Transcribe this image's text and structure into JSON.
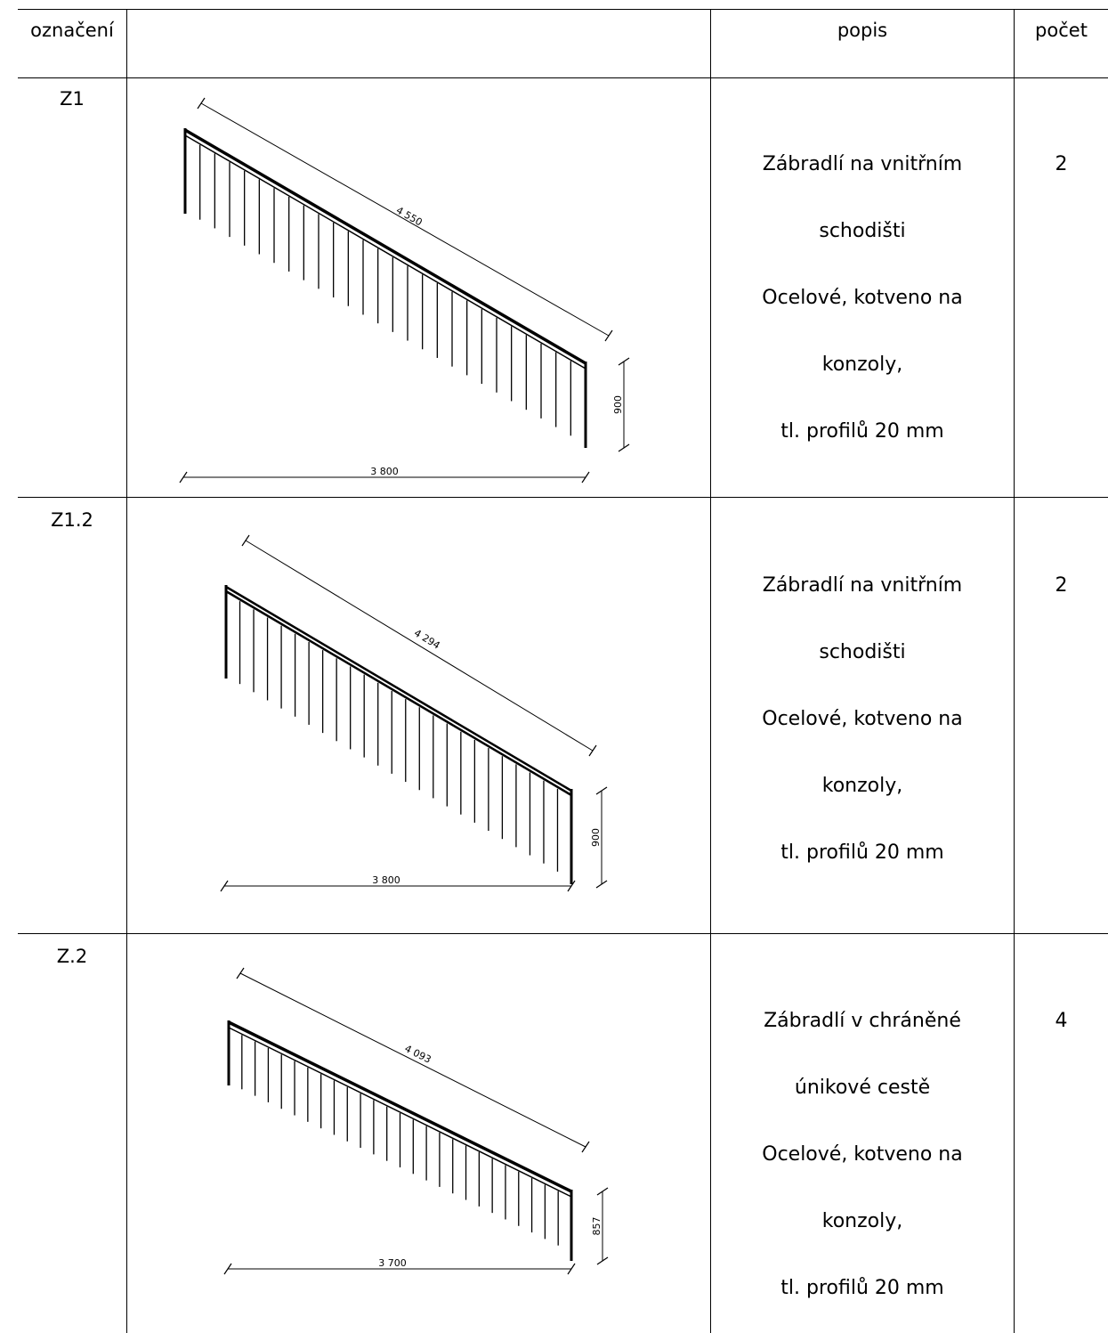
{
  "header": {
    "code": "označení",
    "drawing": "",
    "description": "popis",
    "count": "počet"
  },
  "rows": [
    {
      "code": "Z1",
      "description": [
        "Zábradlí na vnitřním",
        "schodišti",
        "Ocelové, kotveno na",
        "konzoly,",
        "tl. profilů 20 mm"
      ],
      "count": "2",
      "drawing": {
        "slope_length": "4 550",
        "horizontal_length": "3 800",
        "height": "900"
      }
    },
    {
      "code": "Z1.2",
      "description": [
        "Zábradlí na vnitřním",
        "schodišti",
        "Ocelové, kotveno na",
        "konzoly,",
        "tl. profilů 20 mm"
      ],
      "count": "2",
      "drawing": {
        "slope_length": "4 294",
        "horizontal_length": "3 800",
        "height": "900"
      }
    },
    {
      "code": "Z.2",
      "description": [
        "Zábradlí v chráněné",
        "únikové cestě",
        "Ocelové, kotveno na",
        "konzoly,",
        "tl. profilů 20 mm"
      ],
      "count": "4",
      "drawing": {
        "slope_length": "4 093",
        "horizontal_length": "3 700",
        "height": "857"
      }
    }
  ]
}
